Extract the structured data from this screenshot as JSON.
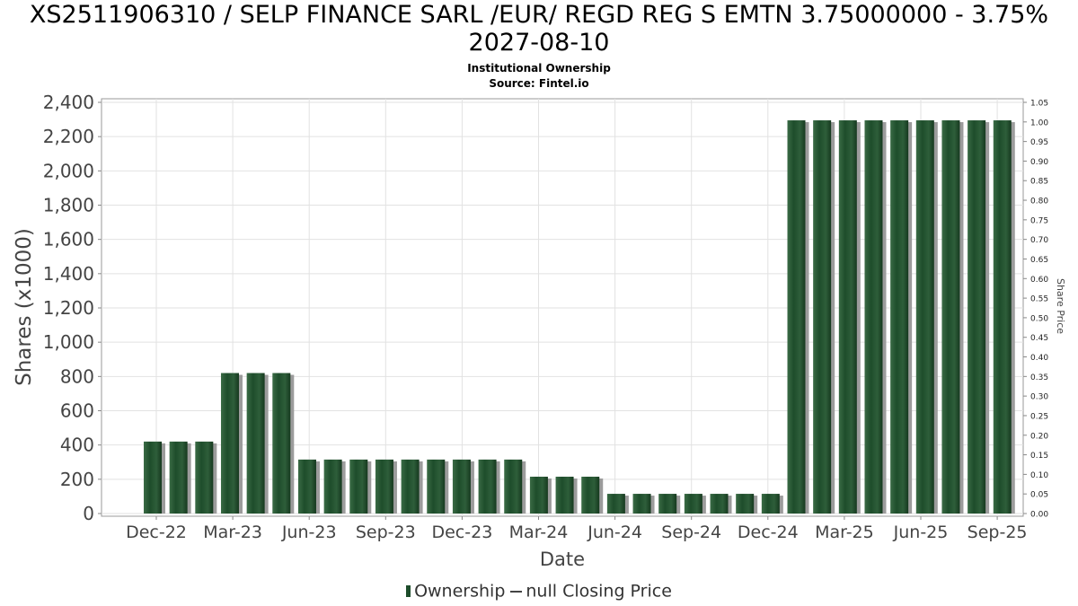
{
  "chart_data": {
    "type": "bar",
    "title_line1": "XS2511906310 / SELP FINANCE SARL /EUR/ REGD REG S EMTN 3.75000000 - 3.75%",
    "title_line2": "2027-08-10",
    "subtitle": "Institutional Ownership",
    "source": "Source: Fintel.io",
    "xlabel": "Date",
    "ylabel": "Shares (x1000)",
    "y2label": "Share Price",
    "ylim": [
      0,
      2400
    ],
    "y2lim": [
      0,
      1.05
    ],
    "yticks": [
      "0",
      "200",
      "400",
      "600",
      "800",
      "1,000",
      "1,200",
      "1,400",
      "1,600",
      "1,800",
      "2,000",
      "2,200",
      "2,400"
    ],
    "y2ticks": [
      "0.00",
      "0.05",
      "0.10",
      "0.15",
      "0.20",
      "0.25",
      "0.30",
      "0.35",
      "0.40",
      "0.45",
      "0.50",
      "0.55",
      "0.60",
      "0.65",
      "0.70",
      "0.75",
      "0.80",
      "0.85",
      "0.90",
      "0.95",
      "1.00",
      "1.05"
    ],
    "xticks": [
      "Dec-22",
      "Mar-23",
      "Jun-23",
      "Sep-23",
      "Dec-23",
      "Mar-24",
      "Jun-24",
      "Sep-24",
      "Dec-24",
      "Mar-25",
      "Jun-25",
      "Sep-25"
    ],
    "grid": true,
    "series": [
      {
        "name": "Ownership",
        "color": "#1e4d2b",
        "values": [
          420,
          420,
          420,
          820,
          820,
          820,
          315,
          315,
          315,
          315,
          315,
          315,
          315,
          315,
          315,
          215,
          215,
          215,
          115,
          115,
          115,
          115,
          115,
          115,
          115,
          2295,
          2295,
          2295,
          2295,
          2295,
          2295,
          2295,
          2295,
          2295
        ]
      }
    ],
    "legend": {
      "position": "bottom",
      "items": [
        "Ownership",
        "null Closing Price"
      ]
    }
  }
}
